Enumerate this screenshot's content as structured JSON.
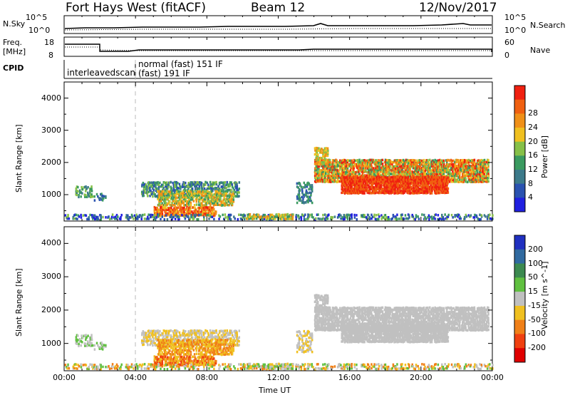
{
  "header": {
    "station": "Fort Hays West (fitACF)",
    "beam": "Beam 12",
    "date": "12/Nov/2017"
  },
  "panels": {
    "nsky_label": "N.Sky",
    "nsearch_label": "N.Search",
    "nsky_ticks": [
      "10^5",
      "10^0"
    ],
    "nsearch_ticks": [
      "10^5",
      "10^0"
    ],
    "freq_label_1": "Freq.",
    "freq_label_2": "[MHz]",
    "freq_ticks": [
      "18",
      "8"
    ],
    "nave_label": "Nave",
    "nave_ticks": [
      "60",
      "0"
    ],
    "cpid_label": "CPID",
    "cpid_entries": [
      "interleavedscan",
      "normal (fast) 151 IF",
      "(fast) 191 IF"
    ]
  },
  "chart_data": [
    {
      "type": "heatmap",
      "name": "Power",
      "ylabel": "Slant Range [km]",
      "y_ticks": [
        1000,
        2000,
        3000,
        4000
      ],
      "x_ticks": [
        "00:00",
        "04:00",
        "08:00",
        "12:00",
        "16:00",
        "20:00",
        "00:00"
      ],
      "colorbar_label": "Power [dB]",
      "colorbar_ticks": [
        "4",
        "8",
        "12",
        "16",
        "20",
        "24",
        "28"
      ]
    },
    {
      "type": "heatmap",
      "name": "Velocity",
      "ylabel": "Slant Range [km]",
      "y_ticks": [
        1000,
        2000,
        3000,
        4000
      ],
      "x_ticks": [
        "00:00",
        "04:00",
        "08:00",
        "12:00",
        "16:00",
        "20:00",
        "00:00"
      ],
      "xlabel": "Time UT",
      "colorbar_label": "Velocity [m s^-1]",
      "colorbar_ticks": [
        "200",
        "100",
        "50",
        "15",
        "-15",
        "-50",
        "-100",
        "-200"
      ]
    }
  ]
}
